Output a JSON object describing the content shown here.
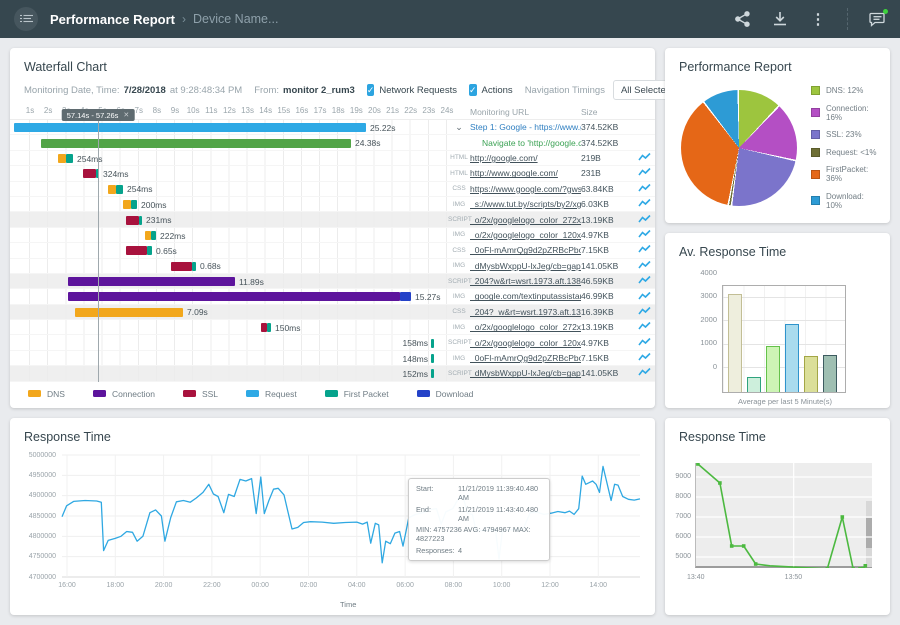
{
  "icons": {
    "close": "✕",
    "caret": "▾",
    "chevron_right": "›",
    "expander": "⌄",
    "more_vert": "⋮",
    "check": "✓"
  },
  "topbar": {
    "title": "Performance Report",
    "breadcrumb": "Device Name..."
  },
  "waterfall": {
    "title": "Waterfall Chart",
    "meta_label": "Monitoring Date, Time:",
    "meta_date": "7/28/2018",
    "meta_time": "at 9:28:48:34 PM",
    "from_label": "From:",
    "from_value": "monitor 2_rum3",
    "checkbox1_label": "Network Requests",
    "checkbox2_label": "Actions",
    "nav_label": "Navigation Timings",
    "dropdown_value": "All Selected",
    "col_url": "Monitoring URL",
    "col_size": "Size",
    "cursor_label": "57.14s - 57.26s",
    "axis_ticks": [
      "1s",
      "2s",
      "3s",
      "4s",
      "5s",
      "6s",
      "7s",
      "8s",
      "9s",
      "10s",
      "11s",
      "12s",
      "13s",
      "14s",
      "15s",
      "16s",
      "17s",
      "18s",
      "19s",
      "20s",
      "21s",
      "22s",
      "23s",
      "24s"
    ],
    "phase_colors": {
      "request": "#2EA9E5",
      "action": "#52A447",
      "dns": "#F2A71C",
      "connection": "#5D149C",
      "ssl": "#A8123D",
      "firstpacket": "#06A38C",
      "download": "#2442C8"
    },
    "legend": [
      {
        "label": "DNS",
        "phase": "dns"
      },
      {
        "label": "Connection",
        "phase": "connection"
      },
      {
        "label": "SSL",
        "phase": "ssl"
      },
      {
        "label": "Request",
        "phase": "request"
      },
      {
        "label": "First Packet",
        "phase": "firstpacket"
      },
      {
        "label": "Download",
        "phase": "download"
      }
    ],
    "rows": [
      {
        "label": "25.22s",
        "segs": [
          [
            "request",
            0,
            352
          ]
        ],
        "kind": "step",
        "url": "Step 1: Google - https://www.google.com.",
        "size": "374.52KB"
      },
      {
        "label": "24.38s",
        "segs": [
          [
            "action",
            27,
            310
          ]
        ],
        "kind": "action",
        "url": "Navigate to 'http://google.com'",
        "size": "374.52KB"
      },
      {
        "label": "254ms",
        "segs": [
          [
            "dns",
            44,
            8
          ],
          [
            "firstpacket",
            52,
            7
          ]
        ],
        "type": "HTML",
        "url": "http://google.com/",
        "size": "219B"
      },
      {
        "label": "324ms",
        "segs": [
          [
            "ssl",
            69,
            13
          ],
          [
            "firstpacket",
            82,
            3
          ]
        ],
        "type": "HTML",
        "url": "http://www.google.com/",
        "size": "231B"
      },
      {
        "label": "254ms",
        "segs": [
          [
            "dns",
            94,
            8
          ],
          [
            "firstpacket",
            102,
            7
          ]
        ],
        "type": "CSS",
        "url": "https://www.google.com/?gws_rd=ssl",
        "size": "63.84KB"
      },
      {
        "label": "200ms",
        "segs": [
          [
            "dns",
            109,
            8
          ],
          [
            "firstpacket",
            117,
            6
          ]
        ],
        "type": "IMG",
        "url": "_s://www.tut.by/scripts/by2/xgemius.js",
        "size": "6.03KB"
      },
      {
        "label": "231ms",
        "segs": [
          [
            "ssl",
            112,
            13
          ],
          [
            "firstpacket",
            125,
            3
          ]
        ],
        "type": "SCRIPT",
        "url": "_o/2x/googlelogo_color_272x92dp.png",
        "size": "13.19KB",
        "striped": true
      },
      {
        "label": "222ms",
        "segs": [
          [
            "dns",
            131,
            6
          ],
          [
            "firstpacket",
            137,
            5
          ]
        ],
        "type": "IMG",
        "url": "_o/2x/googlelogo_color_120x44dp.png",
        "size": "4.97KB"
      },
      {
        "label": "0.65s",
        "segs": [
          [
            "ssl",
            112,
            21
          ],
          [
            "firstpacket",
            133,
            5
          ]
        ],
        "type": "CSS",
        "url": "_0oFl-mAmrQg9d2pZRBcPbocbnz6iNg",
        "size": "7.15KB"
      },
      {
        "label": "0.68s",
        "segs": [
          [
            "ssl",
            157,
            21
          ],
          [
            "firstpacket",
            178,
            4
          ]
        ],
        "type": "IMG",
        "url": "_dMysbWxppU-lxJeg/cb=gapi.loaded_0",
        "size": "141.05KB"
      },
      {
        "label": "11.89s",
        "segs": [
          [
            "connection",
            54,
            167
          ]
        ],
        "type": "SCRIPT",
        "url": "_204?w&rt=wsrt.1973.aft.1381.prt.3964",
        "size": "46.59KB",
        "striped": true
      },
      {
        "label": "15.27s",
        "segs": [
          [
            "connection",
            54,
            332
          ],
          [
            "download",
            386,
            11
          ]
        ],
        "type": "IMG",
        "url": "_google.com/textinputassistant/tia.png",
        "size": "46.99KB"
      },
      {
        "label": "7.09s",
        "segs": [
          [
            "dns",
            61,
            108
          ]
        ],
        "type": "CSS",
        "url": "_204?_w&rt=wsrt.1973.aft.1381.prt.396",
        "size": "16.39KB",
        "striped": true
      },
      {
        "label": "150ms",
        "segs": [
          [
            "ssl",
            247,
            6
          ],
          [
            "firstpacket",
            253,
            4
          ]
        ],
        "type": "IMG",
        "url": "_o/2x/googlelogo_color_272x92dp.png",
        "size": "13.19KB"
      },
      {
        "label": "158ms",
        "segs": [
          [
            "firstpacket",
            417,
            3
          ]
        ],
        "type": "SCRIPT",
        "url": "_o/2x/googlelogo_color_120x44dp.png",
        "size": "4.97KB",
        "label_before": true
      },
      {
        "label": "148ms",
        "segs": [
          [
            "firstpacket",
            417,
            3
          ]
        ],
        "type": "IMG",
        "url": "_0oFl-mAmrQg9d2pZRBcPbocbnz6iNg",
        "size": "7.15KB",
        "label_before": true
      },
      {
        "label": "152ms",
        "segs": [
          [
            "firstpacket",
            417,
            3
          ]
        ],
        "type": "SCRIPT",
        "url": "_dMysbWxppU-lxJeg/cb=gapi.loaded_0",
        "size": "141.05KB",
        "striped": true,
        "label_before": true
      }
    ]
  },
  "chart_data": [
    {
      "id": "performance_pie",
      "type": "pie",
      "title": "Performance Report",
      "slices": [
        {
          "label": "DNS: 12%",
          "value": 12.3,
          "color": "#9DC53E"
        },
        {
          "label": "Connection: 16%",
          "value": 16.4,
          "color": "#B44FC4"
        },
        {
          "label": "SSL: 23%",
          "value": 23.6,
          "color": "#7B74CB"
        },
        {
          "label": "Request: <1%",
          "value": 0.9,
          "color": "#6E6F35"
        },
        {
          "label": "FirstPacket: 36%",
          "value": 36.6,
          "color": "#E56717"
        },
        {
          "label": "Download: 10%",
          "value": 10.2,
          "color": "#2D9BD5"
        }
      ],
      "legend_position": "right"
    },
    {
      "id": "avg_response_bar",
      "type": "bar",
      "title": "Av. Response Time",
      "xlabel": "Average per last 5 Minute(s)",
      "ylim": [
        0,
        4500
      ],
      "yticks": [
        0,
        1000,
        2000,
        3000,
        4000
      ],
      "bars": [
        {
          "value": 4150,
          "fill": "#EEEEDD",
          "stroke": "#C2BE95"
        },
        {
          "value": 620,
          "fill": "#CDEFDC",
          "stroke": "#2FA37E"
        },
        {
          "value": 1950,
          "fill": "#CDF4B5",
          "stroke": "#64C24A"
        },
        {
          "value": 2870,
          "fill": "#A9DBEE",
          "stroke": "#2E93CC"
        },
        {
          "value": 1530,
          "fill": "#DBDF99",
          "stroke": "#A3A646"
        },
        {
          "value": 1570,
          "fill": "#9FBFB2",
          "stroke": "#3D5B60"
        }
      ]
    },
    {
      "id": "response_time_main",
      "type": "line",
      "title": "Response Time",
      "xlabel": "Time",
      "line_color": "#2FA8E2",
      "yticks": [
        "5000000",
        "4950000",
        "4900000",
        "4850000",
        "4800000",
        "4750000",
        "4700000"
      ],
      "ylim": [
        4700000,
        5000000
      ],
      "xticks": [
        "16:00",
        "18:00",
        "20:00",
        "22:00",
        "00:00",
        "02:00",
        "04:00",
        "06:00",
        "08:00",
        "10:00",
        "12:00",
        "14:00"
      ],
      "series": [
        [
          0.0,
          4848000
        ],
        [
          0.008,
          4875000
        ],
        [
          0.02,
          4886000
        ],
        [
          0.04,
          4888000
        ],
        [
          0.06,
          4887000
        ],
        [
          0.068,
          4884000
        ],
        [
          0.072,
          4765000
        ],
        [
          0.08,
          4790000
        ],
        [
          0.092,
          4795000
        ],
        [
          0.102,
          4800000
        ],
        [
          0.112,
          4812000
        ],
        [
          0.122,
          4810000
        ],
        [
          0.13,
          4788000
        ],
        [
          0.14,
          4800000
        ],
        [
          0.152,
          4858000
        ],
        [
          0.162,
          4865000
        ],
        [
          0.172,
          4850000
        ],
        [
          0.178,
          4788000
        ],
        [
          0.188,
          4846000
        ],
        [
          0.198,
          4885000
        ],
        [
          0.21,
          4888000
        ],
        [
          0.222,
          4884000
        ],
        [
          0.232,
          4894000
        ],
        [
          0.244,
          4908000
        ],
        [
          0.254,
          4928000
        ],
        [
          0.262,
          4904000
        ],
        [
          0.27,
          4898000
        ],
        [
          0.28,
          4858000
        ],
        [
          0.288,
          4903000
        ],
        [
          0.298,
          4898000
        ],
        [
          0.308,
          4940000
        ],
        [
          0.318,
          4936000
        ],
        [
          0.328,
          4942000
        ],
        [
          0.336,
          4856000
        ],
        [
          0.344,
          4946000
        ],
        [
          0.35,
          4856000
        ],
        [
          0.358,
          4888000
        ],
        [
          0.366,
          4916000
        ],
        [
          0.374,
          4918000
        ],
        [
          0.384,
          4902000
        ],
        [
          0.39,
          4866000
        ],
        [
          0.398,
          4818000
        ],
        [
          0.408,
          4822000
        ],
        [
          0.418,
          4834000
        ],
        [
          0.43,
          4836000
        ],
        [
          0.45,
          4835000
        ],
        [
          0.47,
          4832000
        ],
        [
          0.49,
          4834000
        ],
        [
          0.51,
          4835000
        ],
        [
          0.52,
          4830000
        ],
        [
          0.528,
          4835000
        ],
        [
          0.534,
          4783000
        ],
        [
          0.542,
          4832000
        ],
        [
          0.548,
          4828000
        ],
        [
          0.554,
          4735000
        ],
        [
          0.56,
          4788000
        ],
        [
          0.568,
          4782000
        ],
        [
          0.576,
          4808000
        ],
        [
          0.584,
          4812000
        ],
        [
          0.59,
          4776000
        ],
        [
          0.6,
          4846000
        ],
        [
          0.612,
          4854000
        ],
        [
          0.624,
          4858000
        ],
        [
          0.636,
          4866000
        ],
        [
          0.648,
          4868000
        ],
        [
          0.656,
          4830000
        ],
        [
          0.664,
          4860000
        ],
        [
          0.676,
          4868000
        ],
        [
          0.686,
          4893000
        ],
        [
          0.694,
          4896000
        ],
        [
          0.702,
          4856000
        ],
        [
          0.71,
          4854000
        ],
        [
          0.716,
          4816000
        ],
        [
          0.728,
          4814000
        ],
        [
          0.74,
          4815000
        ],
        [
          0.75,
          4817000
        ],
        [
          0.756,
          4744000
        ],
        [
          0.762,
          4813000
        ],
        [
          0.774,
          4816000
        ],
        [
          0.786,
          4817000
        ],
        [
          0.798,
          4818000
        ],
        [
          0.81,
          4858000
        ],
        [
          0.822,
          4859000
        ],
        [
          0.834,
          4854000
        ],
        [
          0.846,
          4857000
        ],
        [
          0.858,
          4861000
        ],
        [
          0.87,
          4858000
        ],
        [
          0.878,
          4862000
        ],
        [
          0.886,
          4854000
        ],
        [
          0.894,
          4868000
        ],
        [
          0.9,
          4948000
        ],
        [
          0.906,
          4928000
        ],
        [
          0.912,
          4932000
        ],
        [
          0.918,
          4936000
        ],
        [
          0.924,
          4928000
        ],
        [
          0.93,
          4908000
        ],
        [
          0.936,
          4972000
        ],
        [
          0.942,
          4936000
        ],
        [
          0.95,
          4888000
        ],
        [
          0.956,
          4928000
        ],
        [
          0.962,
          4926000
        ],
        [
          0.97,
          4898000
        ],
        [
          0.98,
          4891000
        ],
        [
          0.99,
          4889000
        ],
        [
          1.0,
          4892000
        ]
      ],
      "tooltip": {
        "start_label": "Start:",
        "start": "11/21/2019 11:39:40.480 AM",
        "end_label": "End:",
        "end": "11/21/2019 11:43:40.480 AM",
        "stats": "MIN: 4757236 AVG: 4794967 MAX: 4827223",
        "responses_label": "Responses:",
        "responses": "4"
      }
    },
    {
      "id": "response_time_small",
      "type": "line",
      "title": "Response Time",
      "line_color": "#4CB940",
      "yticks": [
        9000,
        8000,
        7000,
        6000,
        5000
      ],
      "ylim": [
        4450,
        9700
      ],
      "xticks": [
        {
          "label": "13:40",
          "t": 0.0
        },
        {
          "label": "13:50",
          "t": 0.555
        }
      ],
      "series": [
        [
          0.011,
          9650,
          1
        ],
        [
          0.136,
          8700,
          1
        ],
        [
          0.203,
          5550,
          1
        ],
        [
          0.271,
          5550,
          1
        ],
        [
          0.339,
          4650,
          1
        ],
        [
          0.42,
          4560
        ],
        [
          0.5,
          4520
        ],
        [
          0.6,
          4470
        ],
        [
          0.7,
          4430
        ],
        [
          0.746,
          4410,
          1
        ],
        [
          0.831,
          7000,
          1
        ],
        [
          0.893,
          4400,
          1
        ],
        [
          0.932,
          4410,
          1
        ],
        [
          0.949,
          4420,
          1
        ],
        [
          0.962,
          4560,
          1
        ]
      ]
    }
  ],
  "panels": {
    "pie_title": "Performance Report",
    "avg_title": "Av. Response Time",
    "rt_main_title": "Response Time",
    "rt_small_title": "Response Time"
  }
}
